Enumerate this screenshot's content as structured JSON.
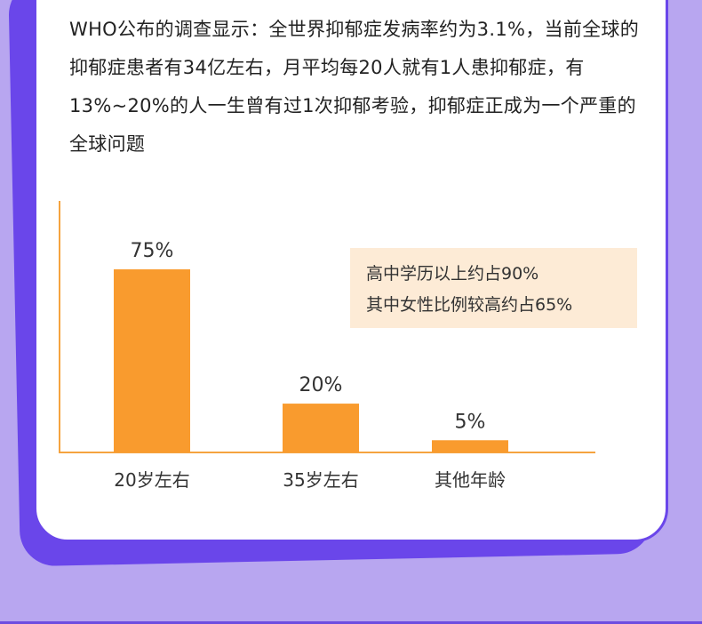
{
  "intro_text": "WHO公布的调查显示：全世界抑郁症发病率约为3.1%，当前全球的抑郁症患者有34亿左右，月平均每20人就有1人患抑郁症，有13%~20%的人一生曾有过1次抑郁考验，抑郁症正成为一个严重的全球问题",
  "note": {
    "line1": "高中学历以上约占90%",
    "line2": "其中女性比例较高约占65%"
  },
  "colors": {
    "bar": "#f99b2e",
    "axis": "#f5a33f",
    "card_border": "#6a46ea",
    "background": "#b8a6f0",
    "note_bg": "#fdebd6"
  },
  "chart_data": {
    "type": "bar",
    "title": "",
    "xlabel": "",
    "ylabel": "",
    "categories": [
      "20岁左右",
      "35岁左右",
      "其他年龄"
    ],
    "values": [
      75,
      20,
      5
    ],
    "value_labels": [
      "75%",
      "20%",
      "5%"
    ],
    "ylim": [
      0,
      75
    ],
    "grid": false,
    "legend": "none"
  }
}
